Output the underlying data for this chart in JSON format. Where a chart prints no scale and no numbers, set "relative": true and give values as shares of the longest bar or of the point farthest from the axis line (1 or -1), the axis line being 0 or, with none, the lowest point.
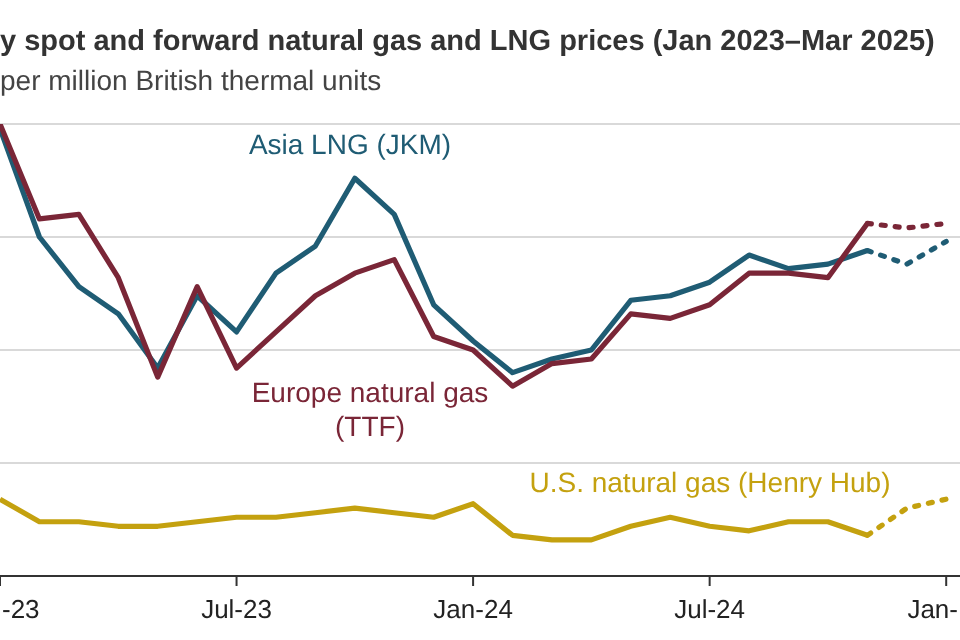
{
  "chart_data": {
    "type": "line",
    "title": "y spot and forward natural gas and LNG prices (Jan 2023–Mar 2025)",
    "subtitle": "per million British thermal units",
    "categories": [
      "-23",
      null,
      null,
      null,
      null,
      null,
      "Jul-23",
      null,
      null,
      null,
      null,
      null,
      "Jan-24",
      null,
      null,
      null,
      null,
      null,
      "Jul-24",
      null,
      null,
      null,
      null,
      null,
      "Jan-"
    ],
    "relative": true,
    "grid": "y",
    "marker": "none",
    "series": [
      {
        "name": "Asia LNG (JKM)",
        "color": "#1f5c74",
        "line_style": "solid",
        "values": [
          0.99,
          0.75,
          0.64,
          0.58,
          0.46,
          0.62,
          0.54,
          0.67,
          0.73,
          0.88,
          0.8,
          0.6,
          0.52,
          0.45,
          0.48,
          0.5,
          0.61,
          0.62,
          0.65,
          0.71,
          0.68,
          0.69,
          0.72,
          null,
          null
        ]
      },
      {
        "color": "#1f5c74",
        "line_style": "dotted",
        "values": [
          null,
          null,
          null,
          null,
          null,
          null,
          null,
          null,
          null,
          null,
          null,
          null,
          null,
          null,
          null,
          null,
          null,
          null,
          null,
          null,
          null,
          null,
          0.72,
          0.69,
          0.74
        ]
      },
      {
        "name": "Europe natural gas (TTF)",
        "color": "#7a2637",
        "line_style": "solid",
        "values": [
          1.0,
          0.79,
          0.8,
          0.66,
          0.44,
          0.64,
          0.46,
          0.54,
          0.62,
          0.67,
          0.7,
          0.53,
          0.5,
          0.42,
          0.47,
          0.48,
          0.58,
          0.57,
          0.6,
          0.67,
          0.67,
          0.66,
          0.78,
          null,
          null
        ]
      },
      {
        "color": "#7a2637",
        "line_style": "dotted",
        "values": [
          null,
          null,
          null,
          null,
          null,
          null,
          null,
          null,
          null,
          null,
          null,
          null,
          null,
          null,
          null,
          null,
          null,
          null,
          null,
          null,
          null,
          null,
          0.78,
          0.77,
          0.78
        ]
      },
      {
        "name": "U.S. natural gas (Henry Hub)",
        "color": "#c4a10f",
        "line_style": "solid",
        "values": [
          0.17,
          0.12,
          0.12,
          0.11,
          0.11,
          0.12,
          0.13,
          0.13,
          0.14,
          0.15,
          0.14,
          0.13,
          0.16,
          0.09,
          0.08,
          0.08,
          0.11,
          0.13,
          0.11,
          0.1,
          0.12,
          0.12,
          0.09,
          null,
          null
        ]
      },
      {
        "color": "#c4a10f",
        "line_style": "dotted",
        "values": [
          null,
          null,
          null,
          null,
          null,
          null,
          null,
          null,
          null,
          null,
          null,
          null,
          null,
          null,
          null,
          null,
          null,
          null,
          null,
          null,
          null,
          null,
          0.09,
          0.15,
          0.17
        ]
      }
    ]
  }
}
